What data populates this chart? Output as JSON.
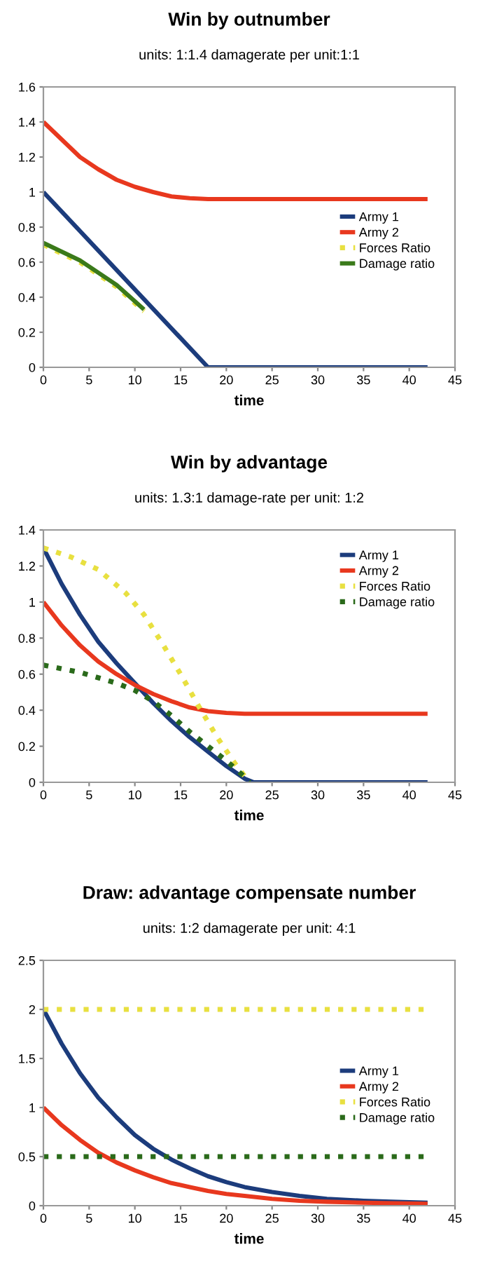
{
  "chart_data": [
    {
      "type": "line",
      "title": "Win by outnumber",
      "subtitle": "units: 1:1.4 damagerate per unit:1:1",
      "xlabel": "time",
      "xlim": [
        0,
        45
      ],
      "xticks": [
        0,
        5,
        10,
        15,
        20,
        25,
        30,
        35,
        40,
        45
      ],
      "ylim": [
        0,
        1.6
      ],
      "yticks": [
        0,
        0.2,
        0.4,
        0.6,
        0.8,
        1,
        1.2,
        1.4,
        1.6
      ],
      "grid": false,
      "legend": "right",
      "marker": "none",
      "series": [
        {
          "name": "Army 1",
          "color": "#1c3c7c",
          "line_style": "solid",
          "x": [
            0,
            18,
            42
          ],
          "values": [
            1.0,
            0,
            0
          ]
        },
        {
          "name": "Army 2",
          "color": "#e8381e",
          "line_style": "solid",
          "x": [
            0,
            2,
            4,
            6,
            8,
            10,
            12,
            14,
            16,
            18,
            42
          ],
          "values": [
            1.4,
            1.3,
            1.2,
            1.13,
            1.07,
            1.03,
            1.0,
            0.975,
            0.965,
            0.96,
            0.96
          ]
        },
        {
          "name": "Forces Ratio",
          "color": "#e8e040",
          "line_style": "dotted",
          "x": [
            0,
            4,
            8,
            11
          ],
          "values": [
            0.7,
            0.6,
            0.46,
            0.32
          ]
        },
        {
          "name": "Damage ratio",
          "color": "#3a7a1a",
          "line_style": "solid",
          "x": [
            0,
            4,
            8,
            11
          ],
          "values": [
            0.71,
            0.61,
            0.47,
            0.33
          ]
        }
      ]
    },
    {
      "type": "line",
      "title": "Win by advantage",
      "subtitle": "units: 1.3:1 damage-rate per unit: 1:2",
      "xlabel": "time",
      "xlim": [
        0,
        45
      ],
      "xticks": [
        0,
        5,
        10,
        15,
        20,
        25,
        30,
        35,
        40,
        45
      ],
      "ylim": [
        0,
        1.4
      ],
      "yticks": [
        0,
        0.2,
        0.4,
        0.6,
        0.8,
        1,
        1.2,
        1.4
      ],
      "grid": false,
      "legend": "top right",
      "marker": "none",
      "series": [
        {
          "name": "Army 1",
          "color": "#1c3c7c",
          "line_style": "solid",
          "x": [
            0,
            2,
            4,
            6,
            8,
            10,
            12,
            14,
            16,
            18,
            20,
            22,
            23,
            42
          ],
          "values": [
            1.3,
            1.1,
            0.93,
            0.78,
            0.66,
            0.55,
            0.44,
            0.34,
            0.25,
            0.17,
            0.09,
            0.02,
            0,
            0
          ]
        },
        {
          "name": "Army 2",
          "color": "#e8381e",
          "line_style": "solid",
          "x": [
            0,
            2,
            4,
            6,
            8,
            10,
            12,
            14,
            16,
            18,
            20,
            22,
            42
          ],
          "values": [
            1.0,
            0.87,
            0.76,
            0.67,
            0.6,
            0.54,
            0.49,
            0.45,
            0.415,
            0.395,
            0.385,
            0.38,
            0.38
          ]
        },
        {
          "name": "Forces Ratio",
          "color": "#e8e040",
          "line_style": "dotted",
          "x": [
            0,
            3,
            6,
            9,
            11,
            13,
            15,
            17,
            19,
            21,
            22.5
          ],
          "values": [
            1.3,
            1.25,
            1.18,
            1.05,
            0.93,
            0.77,
            0.6,
            0.42,
            0.25,
            0.1,
            0
          ]
        },
        {
          "name": "Damage ratio",
          "color": "#2a6a1a",
          "line_style": "dotted",
          "x": [
            0,
            4,
            8,
            10,
            12,
            14,
            16,
            18,
            20,
            22,
            22.5
          ],
          "values": [
            0.65,
            0.61,
            0.55,
            0.51,
            0.45,
            0.37,
            0.28,
            0.2,
            0.12,
            0.03,
            0
          ]
        }
      ]
    },
    {
      "type": "line",
      "title": "Draw: advantage compensate number",
      "subtitle": "units: 1:2 damagerate per unit: 4:1",
      "xlabel": "time",
      "xlim": [
        0,
        45
      ],
      "xticks": [
        0,
        5,
        10,
        15,
        20,
        25,
        30,
        35,
        40,
        45
      ],
      "ylim": [
        0,
        2.5
      ],
      "yticks": [
        0,
        0.5,
        1,
        1.5,
        2,
        2.5
      ],
      "grid": false,
      "legend": "right",
      "marker": "none",
      "series": [
        {
          "name": "Army 1",
          "color": "#1c3c7c",
          "line_style": "solid",
          "x": [
            0,
            2,
            4,
            6,
            8,
            10,
            12,
            14,
            16,
            18,
            20,
            22,
            25,
            28,
            31,
            35,
            38,
            42
          ],
          "values": [
            2.0,
            1.65,
            1.35,
            1.1,
            0.9,
            0.72,
            0.58,
            0.47,
            0.38,
            0.3,
            0.24,
            0.19,
            0.14,
            0.1,
            0.07,
            0.05,
            0.04,
            0.03
          ]
        },
        {
          "name": "Army 2",
          "color": "#e8381e",
          "line_style": "solid",
          "x": [
            0,
            2,
            4,
            6,
            8,
            10,
            12,
            14,
            16,
            18,
            20,
            22,
            25,
            28,
            31,
            35,
            42
          ],
          "values": [
            1.0,
            0.82,
            0.67,
            0.54,
            0.44,
            0.36,
            0.29,
            0.23,
            0.19,
            0.15,
            0.12,
            0.1,
            0.07,
            0.05,
            0.04,
            0.03,
            0.02
          ]
        },
        {
          "name": "Forces Ratio",
          "color": "#e8e040",
          "line_style": "dotted",
          "x": [
            0,
            42
          ],
          "values": [
            2.0,
            2.0
          ]
        },
        {
          "name": "Damage ratio",
          "color": "#2a6a1a",
          "line_style": "dotted",
          "x": [
            0,
            42
          ],
          "values": [
            0.5,
            0.5
          ]
        }
      ]
    }
  ]
}
